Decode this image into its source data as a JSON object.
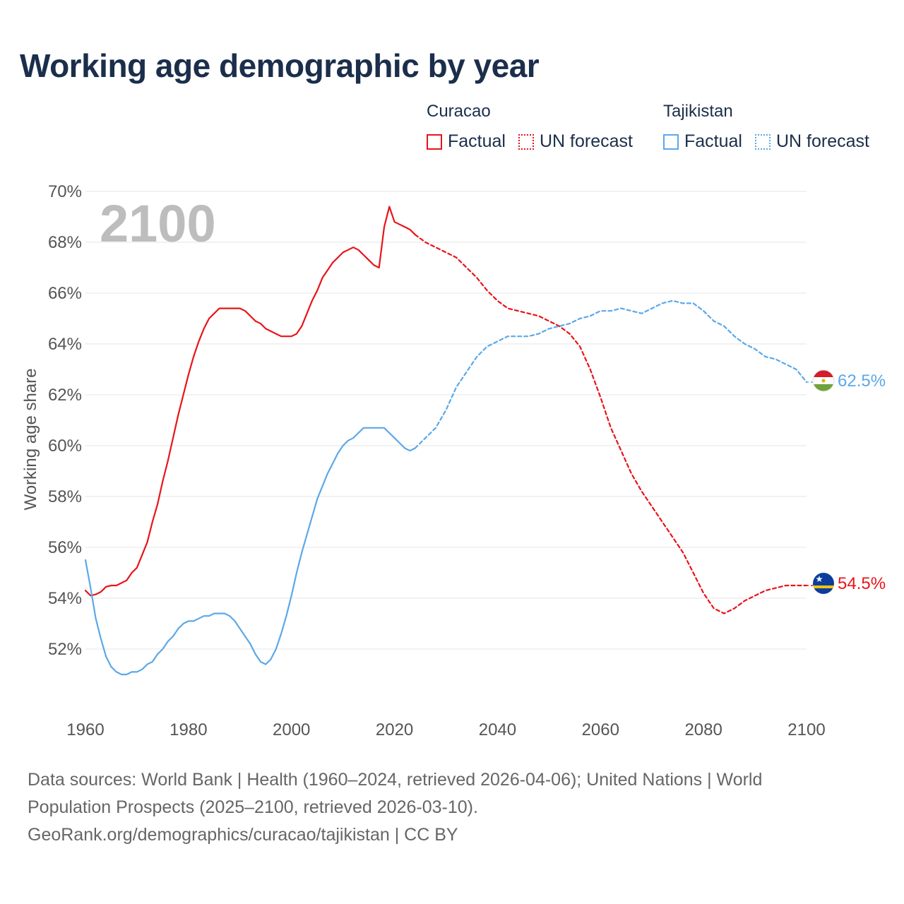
{
  "title": "Working age demographic by year",
  "legend": {
    "groups": [
      {
        "name": "Curacao",
        "color": "#e8141a",
        "items": [
          "Factual",
          "UN forecast"
        ]
      },
      {
        "name": "Tajikistan",
        "color": "#5ca8e8",
        "items": [
          "Factual",
          "UN forecast"
        ]
      }
    ]
  },
  "year_overlay": "2100",
  "end_labels": {
    "tajikistan": "62.5%",
    "curacao": "54.5%"
  },
  "flags": {
    "tajikistan": "tajikistan-flag-icon",
    "curacao": "curacao-flag-icon"
  },
  "footer": {
    "line1": "Data sources: World Bank | Health (1960–2024, retrieved 2026-04-06); United Nations | World",
    "line2": "Population Prospects (2025–2100, retrieved 2026-03-10).",
    "line3": "GeoRank.org/demographics/curacao/tajikistan | CC BY"
  },
  "chart_data": {
    "type": "line",
    "title": "Working age demographic by year",
    "xlabel": "",
    "ylabel": "Working age share",
    "xlim": [
      1960,
      2100
    ],
    "ylim": [
      50,
      70
    ],
    "x_ticks": [
      1960,
      1980,
      2000,
      2020,
      2040,
      2060,
      2080,
      2100
    ],
    "y_ticks": [
      52,
      54,
      56,
      58,
      60,
      62,
      64,
      66,
      68,
      70
    ],
    "y_tick_format": "%",
    "grid": true,
    "series": [
      {
        "name": "Curacao Factual",
        "country": "Curacao",
        "kind": "factual",
        "color": "#e8141a",
        "x": [
          1960,
          1961,
          1962,
          1963,
          1964,
          1965,
          1966,
          1967,
          1968,
          1969,
          1970,
          1971,
          1972,
          1973,
          1974,
          1975,
          1976,
          1977,
          1978,
          1979,
          1980,
          1981,
          1982,
          1983,
          1984,
          1985,
          1986,
          1987,
          1988,
          1989,
          1990,
          1991,
          1992,
          1993,
          1994,
          1995,
          1996,
          1997,
          1998,
          1999,
          2000,
          2001,
          2002,
          2003,
          2004,
          2005,
          2006,
          2007,
          2008,
          2009,
          2010,
          2011,
          2012,
          2013,
          2014,
          2015,
          2016,
          2017,
          2018,
          2019,
          2020,
          2021,
          2022,
          2023,
          2024
        ],
        "y": [
          54.3,
          54.1,
          54.15,
          54.25,
          54.45,
          54.5,
          54.5,
          54.6,
          54.7,
          55.0,
          55.2,
          55.7,
          56.2,
          57.0,
          57.7,
          58.6,
          59.4,
          60.3,
          61.2,
          62.0,
          62.8,
          63.5,
          64.1,
          64.6,
          65.0,
          65.2,
          65.4,
          65.4,
          65.4,
          65.4,
          65.4,
          65.3,
          65.1,
          64.9,
          64.8,
          64.6,
          64.5,
          64.4,
          64.3,
          64.3,
          64.3,
          64.4,
          64.7,
          65.2,
          65.7,
          66.1,
          66.6,
          66.9,
          67.2,
          67.4,
          67.6,
          67.7,
          67.8,
          67.7,
          67.5,
          67.3,
          67.1,
          67.0,
          68.6,
          69.4,
          68.8,
          68.7,
          68.6,
          68.5,
          68.3
        ]
      },
      {
        "name": "Curacao UN forecast",
        "country": "Curacao",
        "kind": "forecast",
        "color": "#e8141a",
        "x": [
          2024,
          2026,
          2028,
          2030,
          2032,
          2034,
          2036,
          2038,
          2040,
          2042,
          2044,
          2046,
          2048,
          2050,
          2052,
          2054,
          2056,
          2058,
          2060,
          2062,
          2064,
          2066,
          2068,
          2070,
          2072,
          2074,
          2076,
          2078,
          2080,
          2082,
          2084,
          2086,
          2088,
          2090,
          2092,
          2094,
          2096,
          2098,
          2100
        ],
        "y": [
          68.3,
          68.0,
          67.8,
          67.6,
          67.4,
          67.0,
          66.6,
          66.1,
          65.7,
          65.4,
          65.3,
          65.2,
          65.1,
          64.9,
          64.7,
          64.4,
          63.9,
          63.0,
          61.9,
          60.7,
          59.8,
          58.9,
          58.2,
          57.6,
          57.0,
          56.4,
          55.8,
          55.0,
          54.2,
          53.6,
          53.4,
          53.6,
          53.9,
          54.1,
          54.3,
          54.4,
          54.5,
          54.5,
          54.5
        ]
      },
      {
        "name": "Tajikistan Factual",
        "country": "Tajikistan",
        "kind": "factual",
        "color": "#5ca8e8",
        "x": [
          1960,
          1961,
          1962,
          1963,
          1964,
          1965,
          1966,
          1967,
          1968,
          1969,
          1970,
          1971,
          1972,
          1973,
          1974,
          1975,
          1976,
          1977,
          1978,
          1979,
          1980,
          1981,
          1982,
          1983,
          1984,
          1985,
          1986,
          1987,
          1988,
          1989,
          1990,
          1991,
          1992,
          1993,
          1994,
          1995,
          1996,
          1997,
          1998,
          1999,
          2000,
          2001,
          2002,
          2003,
          2004,
          2005,
          2006,
          2007,
          2008,
          2009,
          2010,
          2011,
          2012,
          2013,
          2014,
          2015,
          2016,
          2017,
          2018,
          2019,
          2020,
          2021,
          2022,
          2023,
          2024
        ],
        "y": [
          55.5,
          54.4,
          53.2,
          52.4,
          51.7,
          51.3,
          51.1,
          51.0,
          51.0,
          51.1,
          51.1,
          51.2,
          51.4,
          51.5,
          51.8,
          52.0,
          52.3,
          52.5,
          52.8,
          53.0,
          53.1,
          53.1,
          53.2,
          53.3,
          53.3,
          53.4,
          53.4,
          53.4,
          53.3,
          53.1,
          52.8,
          52.5,
          52.2,
          51.8,
          51.5,
          51.4,
          51.6,
          52.0,
          52.6,
          53.3,
          54.1,
          55.0,
          55.8,
          56.5,
          57.2,
          57.9,
          58.4,
          58.9,
          59.3,
          59.7,
          60.0,
          60.2,
          60.3,
          60.5,
          60.7,
          60.7,
          60.7,
          60.7,
          60.7,
          60.5,
          60.3,
          60.1,
          59.9,
          59.8,
          59.9
        ]
      },
      {
        "name": "Tajikistan UN forecast",
        "country": "Tajikistan",
        "kind": "forecast",
        "color": "#5ca8e8",
        "x": [
          2024,
          2026,
          2028,
          2030,
          2032,
          2034,
          2036,
          2038,
          2040,
          2042,
          2044,
          2046,
          2048,
          2050,
          2052,
          2054,
          2056,
          2058,
          2060,
          2062,
          2064,
          2066,
          2068,
          2070,
          2072,
          2074,
          2076,
          2078,
          2080,
          2082,
          2084,
          2086,
          2088,
          2090,
          2092,
          2094,
          2096,
          2098,
          2100
        ],
        "y": [
          59.9,
          60.3,
          60.7,
          61.4,
          62.3,
          62.9,
          63.5,
          63.9,
          64.1,
          64.3,
          64.3,
          64.3,
          64.4,
          64.6,
          64.7,
          64.8,
          65.0,
          65.1,
          65.3,
          65.3,
          65.4,
          65.3,
          65.2,
          65.4,
          65.6,
          65.7,
          65.6,
          65.6,
          65.3,
          64.9,
          64.7,
          64.3,
          64.0,
          63.8,
          63.5,
          63.4,
          63.2,
          63.0,
          62.5
        ]
      }
    ]
  }
}
